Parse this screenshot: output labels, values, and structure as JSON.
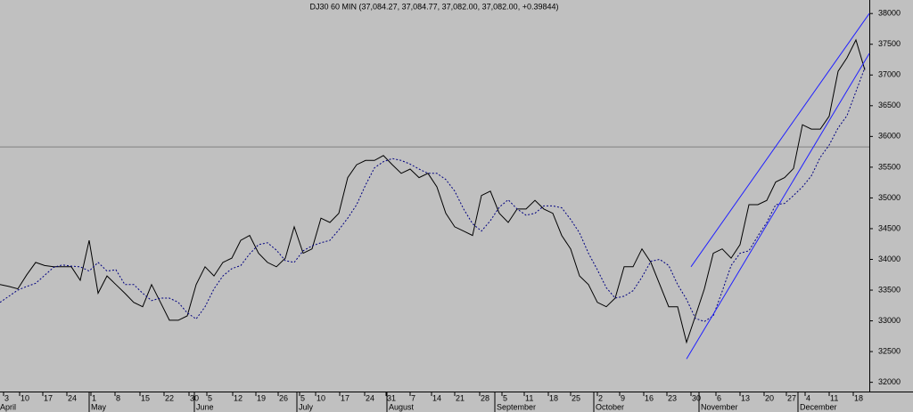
{
  "chart_data": {
    "type": "line",
    "title": "DJ30 60 MIN (37,084.27, 37,084.77, 37,082.00, 37,082.00, +0.39844)",
    "x": [
      0,
      2,
      4,
      6,
      8,
      10,
      12,
      14,
      16,
      18,
      20,
      22,
      24,
      26,
      28,
      30,
      32,
      34,
      36,
      38,
      40,
      42,
      44,
      46,
      48,
      50,
      52,
      54,
      56,
      58,
      60,
      62,
      64,
      66,
      68,
      70,
      72,
      74,
      76,
      78,
      80,
      82,
      84,
      86,
      88,
      90,
      92,
      94,
      96,
      98,
      100,
      102,
      104,
      106,
      108,
      110,
      112,
      114,
      116,
      118,
      120,
      122,
      124,
      126,
      128,
      130,
      132,
      134,
      136,
      138,
      140,
      142,
      144,
      146,
      148,
      150,
      152,
      154,
      156,
      158,
      160,
      162,
      164,
      166,
      168,
      170,
      172,
      174,
      176,
      178,
      180,
      182,
      184,
      186,
      188,
      190,
      192,
      194
    ],
    "series": [
      {
        "color": "#000000",
        "values": [
          33590,
          33560,
          33520,
          33750,
          33950,
          33900,
          33880,
          33880,
          33880,
          33660,
          34310,
          33450,
          33730,
          33590,
          33450,
          33300,
          33230,
          33590,
          33300,
          33010,
          33010,
          33080,
          33590,
          33880,
          33730,
          33950,
          34020,
          34310,
          34390,
          34100,
          33950,
          33880,
          34020,
          34530,
          34100,
          34170,
          34670,
          34600,
          34750,
          35330,
          35540,
          35610,
          35610,
          35690,
          35540,
          35400,
          35470,
          35330,
          35400,
          35180,
          34750,
          34530,
          34460,
          34390,
          35040,
          35110,
          34750,
          34600,
          34820,
          34820,
          34960,
          34820,
          34750,
          34390,
          34170,
          33730,
          33590,
          33300,
          33230,
          33370,
          33880,
          33880,
          34170,
          33950,
          33590,
          33230,
          33230,
          32650,
          33080,
          33520,
          34100,
          34170,
          34020,
          34240,
          34890,
          34890,
          34960,
          35260,
          35330,
          35480,
          36190,
          36120,
          36120,
          36330,
          37060,
          37280,
          37570,
          37080
        ]
      },
      {
        "color": "#000080",
        "dash": true,
        "values": [
          33300,
          33400,
          33500,
          33560,
          33610,
          33740,
          33870,
          33910,
          33890,
          33880,
          33810,
          33950,
          33810,
          33830,
          33590,
          33590,
          33450,
          33330,
          33370,
          33370,
          33300,
          33130,
          33030,
          33230,
          33520,
          33730,
          33850,
          33900,
          34090,
          34240,
          34270,
          34150,
          33980,
          33950,
          34140,
          34220,
          34270,
          34310,
          34480,
          34670,
          34890,
          35210,
          35490,
          35590,
          35640,
          35610,
          35550,
          35470,
          35400,
          35400,
          35300,
          35110,
          34820,
          34580,
          34460,
          34630,
          34850,
          34970,
          34820,
          34720,
          34750,
          34870,
          34870,
          34840,
          34650,
          34430,
          34100,
          33830,
          33540,
          33370,
          33400,
          33490,
          33710,
          33970,
          34000,
          33900,
          33590,
          33350,
          33040,
          32990,
          33080,
          33480,
          33900,
          34100,
          34140,
          34380,
          34600,
          34890,
          34910,
          35040,
          35180,
          35360,
          35660,
          35860,
          36140,
          36340,
          36730,
          37120
        ]
      }
    ],
    "trendlines": [
      {
        "color": "#2020ff",
        "points": [
          [
            155,
            33880
          ],
          [
            195,
            38000
          ]
        ]
      },
      {
        "color": "#2020ff",
        "points": [
          [
            154,
            32380
          ],
          [
            195,
            37350
          ]
        ]
      }
    ],
    "hline": {
      "value": 35830,
      "color": "#808080"
    },
    "xlim": [
      0,
      195
    ],
    "ylim": [
      31850,
      38220
    ],
    "yticks": [
      32000,
      32500,
      33000,
      33500,
      34000,
      34500,
      35000,
      35500,
      36000,
      36500,
      37000,
      37500,
      38000
    ],
    "xticks": [
      {
        "value": 0.8,
        "label": "3"
      },
      {
        "value": 4.4,
        "label": "10"
      },
      {
        "value": 9.6,
        "label": "17"
      },
      {
        "value": 15,
        "label": "24"
      },
      {
        "value": 20.4,
        "label": "1"
      },
      {
        "value": 25.8,
        "label": "8"
      },
      {
        "value": 31.4,
        "label": "15"
      },
      {
        "value": 36.8,
        "label": "22"
      },
      {
        "value": 42.4,
        "label": "30"
      },
      {
        "value": 46.4,
        "label": "5"
      },
      {
        "value": 52.2,
        "label": "12"
      },
      {
        "value": 57.4,
        "label": "19"
      },
      {
        "value": 62.4,
        "label": "26"
      },
      {
        "value": 67.2,
        "label": "5"
      },
      {
        "value": 70.8,
        "label": "10"
      },
      {
        "value": 76.2,
        "label": "17"
      },
      {
        "value": 81.8,
        "label": "24"
      },
      {
        "value": 86.6,
        "label": "31"
      },
      {
        "value": 92,
        "label": "7"
      },
      {
        "value": 96.8,
        "label": "14"
      },
      {
        "value": 102,
        "label": "21"
      },
      {
        "value": 107.6,
        "label": "28"
      },
      {
        "value": 112.6,
        "label": "5"
      },
      {
        "value": 117.6,
        "label": "11"
      },
      {
        "value": 123,
        "label": "18"
      },
      {
        "value": 128,
        "label": "25"
      },
      {
        "value": 134,
        "label": "2"
      },
      {
        "value": 139,
        "label": "9"
      },
      {
        "value": 144.4,
        "label": "16"
      },
      {
        "value": 149.6,
        "label": "23"
      },
      {
        "value": 155,
        "label": "30"
      },
      {
        "value": 160.6,
        "label": "6"
      },
      {
        "value": 166,
        "label": "13"
      },
      {
        "value": 171.4,
        "label": "20"
      },
      {
        "value": 176.4,
        "label": "27"
      },
      {
        "value": 180.6,
        "label": "4"
      },
      {
        "value": 186,
        "label": "11"
      },
      {
        "value": 191.4,
        "label": "18"
      }
    ],
    "month_ticks": [
      {
        "value": -0.4,
        "label": "April"
      },
      {
        "value": 20,
        "label": "May"
      },
      {
        "value": 43.6,
        "label": "June"
      },
      {
        "value": 66.6,
        "label": "July"
      },
      {
        "value": 86.8,
        "label": "August"
      },
      {
        "value": 111,
        "label": "September"
      },
      {
        "value": 133.2,
        "label": "October"
      },
      {
        "value": 156.8,
        "label": "November"
      },
      {
        "value": 179,
        "label": "December"
      }
    ]
  }
}
